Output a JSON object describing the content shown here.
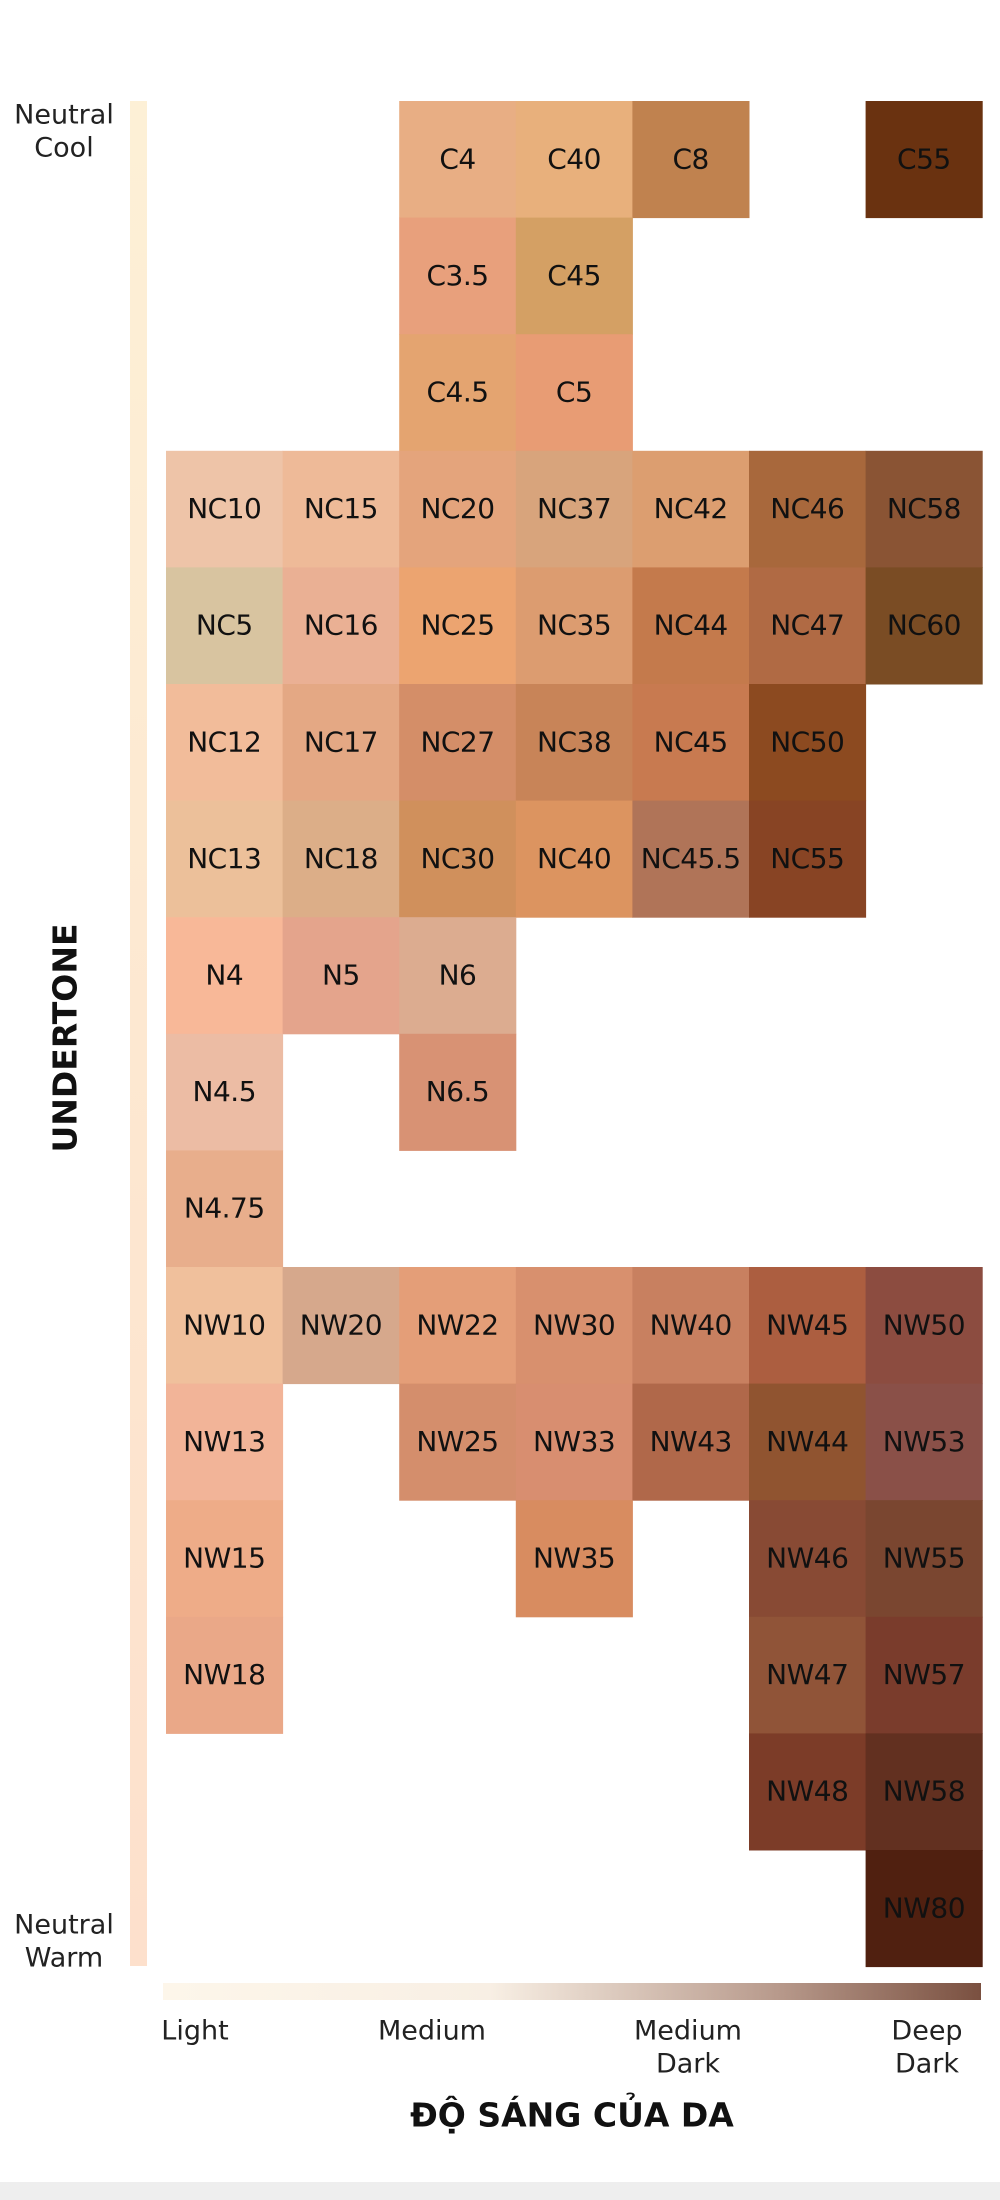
{
  "y_axis": {
    "top_label": [
      "Neutral",
      "Cool"
    ],
    "title": "UNDERTONE",
    "bottom_label": [
      "Neutral",
      "Warm"
    ]
  },
  "x_axis": {
    "labels": [
      [
        "Light"
      ],
      [
        "Medium"
      ],
      [
        "Medium",
        "Dark"
      ],
      [
        "Deep",
        "Dark"
      ]
    ],
    "title": "ĐỘ SÁNG CỦA DA"
  },
  "rows": [
    [
      null,
      null,
      {
        "label": "C4",
        "color": "#e8ae84"
      },
      {
        "label": "C40",
        "color": "#e8b07c"
      },
      {
        "label": "C8",
        "color": "#c0824f"
      },
      null,
      {
        "label": "C55",
        "color": "#6a3210"
      }
    ],
    [
      null,
      null,
      {
        "label": "C3.5",
        "color": "#e8a07c"
      },
      {
        "label": "C45",
        "color": "#d4a064"
      },
      null,
      null,
      null
    ],
    [
      null,
      null,
      {
        "label": "C4.5",
        "color": "#e4a470"
      },
      {
        "label": "C5",
        "color": "#e89c74"
      },
      null,
      null,
      null
    ],
    [
      {
        "label": "NC10",
        "color": "#eec4a8"
      },
      {
        "label": "NC15",
        "color": "#eeba98"
      },
      {
        "label": "NC20",
        "color": "#e4a47c"
      },
      {
        "label": "NC37",
        "color": "#d8a47c"
      },
      {
        "label": "NC42",
        "color": "#dc9e70"
      },
      {
        "label": "NC46",
        "color": "#a8683c"
      },
      {
        "label": "NC58",
        "color": "#8a5434"
      }
    ],
    [
      {
        "label": "NC5",
        "color": "#d8c4a0"
      },
      {
        "label": "NC16",
        "color": "#eab094"
      },
      {
        "label": "NC25",
        "color": "#eca470"
      },
      {
        "label": "NC35",
        "color": "#dc9c70"
      },
      {
        "label": "NC44",
        "color": "#c47a4c"
      },
      {
        "label": "NC47",
        "color": "#b06a44"
      },
      {
        "label": "NC60",
        "color": "#7a4c24"
      }
    ],
    [
      {
        "label": "NC12",
        "color": "#f2bc9a"
      },
      {
        "label": "NC17",
        "color": "#e4a884"
      },
      {
        "label": "NC27",
        "color": "#d48e68"
      },
      {
        "label": "NC38",
        "color": "#c88458"
      },
      {
        "label": "NC45",
        "color": "#c87a50"
      },
      {
        "label": "NC50",
        "color": "#8c4a20"
      },
      null
    ],
    [
      {
        "label": "NC13",
        "color": "#ecc09a"
      },
      {
        "label": "NC18",
        "color": "#dcae88"
      },
      {
        "label": "NC30",
        "color": "#d0905c"
      },
      {
        "label": "NC40",
        "color": "#dc9460"
      },
      {
        "label": "NC45.5",
        "color": "#b07458"
      },
      {
        "label": "NC55",
        "color": "#884424"
      },
      null
    ],
    [
      {
        "label": "N4",
        "color": "#f8b898"
      },
      {
        "label": "N5",
        "color": "#e4a48c"
      },
      {
        "label": "N6",
        "color": "#dcac90"
      },
      null,
      null,
      null,
      null
    ],
    [
      {
        "label": "N4.5",
        "color": "#ecbca4"
      },
      null,
      {
        "label": "N6.5",
        "color": "#d89274"
      },
      null,
      null,
      null,
      null
    ],
    [
      {
        "label": "N4.75",
        "color": "#e8ae8c"
      },
      null,
      null,
      null,
      null,
      null,
      null
    ],
    [
      {
        "label": "NW10",
        "color": "#f0c09c"
      },
      {
        "label": "NW20",
        "color": "#d6a88c"
      },
      {
        "label": "NW22",
        "color": "#e49e78"
      },
      {
        "label": "NW30",
        "color": "#d8906e"
      },
      {
        "label": "NW40",
        "color": "#c88060"
      },
      {
        "label": "NW45",
        "color": "#ac5e40"
      },
      {
        "label": "NW50",
        "color": "#8c4c40"
      }
    ],
    [
      {
        "label": "NW13",
        "color": "#f2b498"
      },
      null,
      {
        "label": "NW25",
        "color": "#d48e6c"
      },
      {
        "label": "NW33",
        "color": "#d88e70"
      },
      {
        "label": "NW43",
        "color": "#b0684a"
      },
      {
        "label": "NW44",
        "color": "#905430"
      },
      {
        "label": "NW53",
        "color": "#8a5048"
      }
    ],
    [
      {
        "label": "NW15",
        "color": "#eeac88"
      },
      null,
      null,
      {
        "label": "NW35",
        "color": "#d88c60"
      },
      null,
      {
        "label": "NW46",
        "color": "#884a34"
      },
      {
        "label": "NW55",
        "color": "#7a4630"
      }
    ],
    [
      {
        "label": "NW18",
        "color": "#eaa888"
      },
      null,
      null,
      null,
      null,
      {
        "label": "NW47",
        "color": "#905438"
      },
      {
        "label": "NW57",
        "color": "#7a3c2c"
      }
    ],
    [
      null,
      null,
      null,
      null,
      null,
      {
        "label": "NW48",
        "color": "#7c3c28"
      },
      {
        "label": "NW58",
        "color": "#623020"
      }
    ],
    [
      null,
      null,
      null,
      null,
      null,
      null,
      {
        "label": "NW80",
        "color": "#502010"
      }
    ]
  ]
}
